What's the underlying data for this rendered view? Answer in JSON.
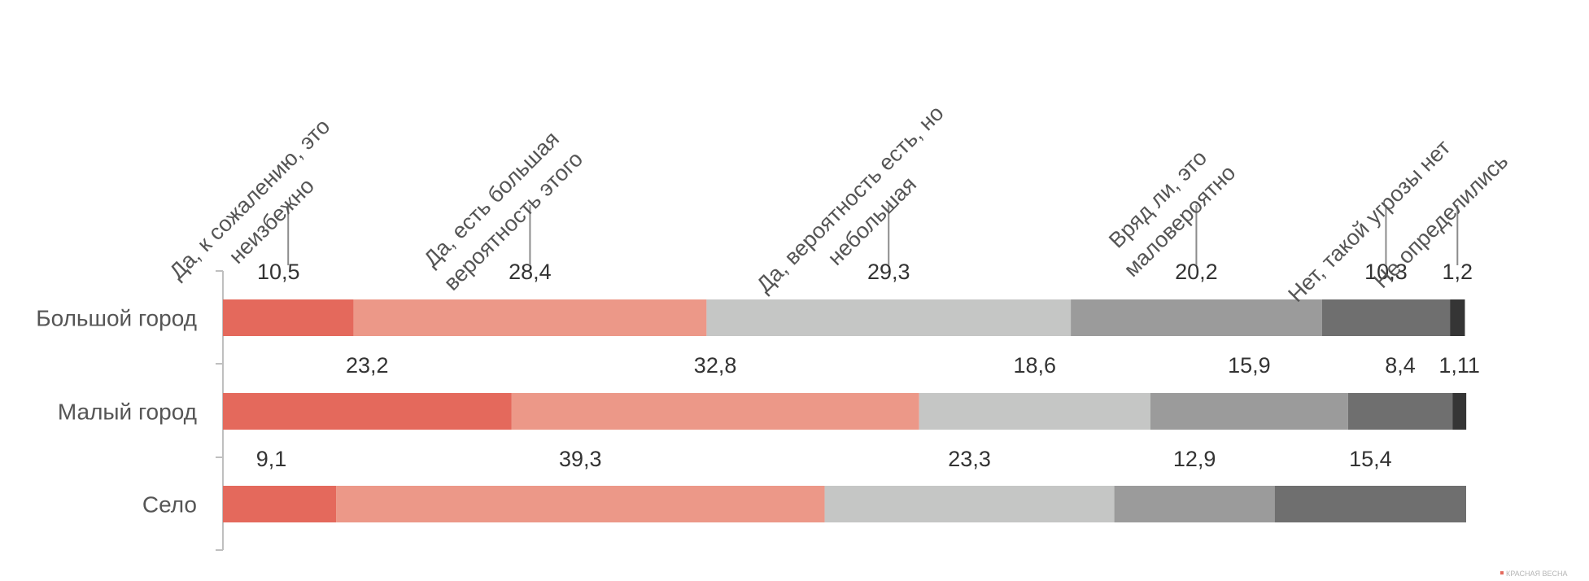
{
  "chart_data": {
    "type": "bar",
    "orientation": "horizontal",
    "stacked": true,
    "categories": [
      "Большой город",
      "Малый город",
      "Село"
    ],
    "series": [
      {
        "name": "Да, к сожалению, это неизбежно",
        "name_lines": [
          "Да, к сожалению, это",
          "неизбежно"
        ],
        "color": "#e4695c",
        "values": [
          10.5,
          23.2,
          9.1
        ],
        "labels": [
          "10,5",
          "23,2",
          "9,1"
        ]
      },
      {
        "name": "Да, есть большая вероятность этого",
        "name_lines": [
          "Да, есть большая",
          "вероятность этого"
        ],
        "color": "#ec9888",
        "values": [
          28.4,
          32.8,
          39.3
        ],
        "labels": [
          "28,4",
          "32,8",
          "39,3"
        ]
      },
      {
        "name": "Да, вероятность есть, но небольшая",
        "name_lines": [
          "Да, вероятность есть, но",
          "небольшая"
        ],
        "color": "#c5c6c5",
        "values": [
          29.3,
          18.6,
          23.3
        ],
        "labels": [
          "29,3",
          "18,6",
          "23,3"
        ]
      },
      {
        "name": "Вряд ли, это маловероятно",
        "name_lines": [
          "Вряд ли, это",
          "маловероятно"
        ],
        "color": "#9b9b9b",
        "values": [
          20.2,
          15.9,
          12.9
        ],
        "labels": [
          "20,2",
          "15,9",
          "12,9"
        ]
      },
      {
        "name": "Нет, такой угрозы нет",
        "name_lines": [
          "Нет, такой угрозы нет"
        ],
        "color": "#6f6f6f",
        "values": [
          10.3,
          8.4,
          15.4
        ],
        "labels": [
          "10,3",
          "8,4",
          "15,4"
        ]
      },
      {
        "name": "Не определились",
        "name_lines": [
          "Не определились"
        ],
        "color": "#353535",
        "values": [
          1.2,
          1.11,
          0
        ],
        "labels": [
          "1,2",
          "1,11",
          ""
        ]
      }
    ],
    "xlim": [
      0,
      100
    ],
    "legend": "top, rotated labels with leader lines",
    "grid": false
  },
  "watermark": "КРАСНАЯ ВЕСНА"
}
